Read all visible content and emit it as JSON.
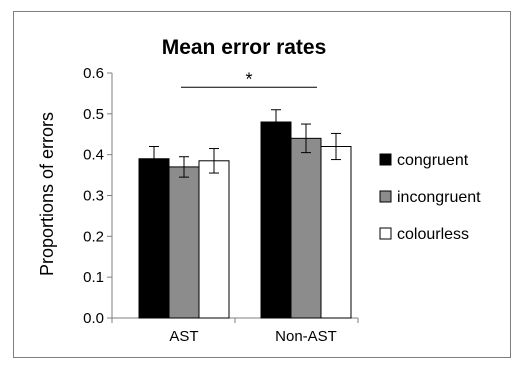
{
  "chart_data": {
    "type": "bar",
    "title": "Mean error rates",
    "xlabel": "",
    "ylabel": "Proportions of errors",
    "ylim": [
      0,
      0.6
    ],
    "yticks": [
      "0.0",
      "0.1",
      "0.2",
      "0.3",
      "0.4",
      "0.5",
      "0.6"
    ],
    "categories": [
      "AST",
      "Non-AST"
    ],
    "series": [
      {
        "name": "congruent",
        "color": "#000000",
        "values": [
          0.39,
          0.48
        ],
        "errors": [
          0.03,
          0.03
        ]
      },
      {
        "name": "incongruent",
        "color": "#8c8c8c",
        "values": [
          0.37,
          0.44
        ],
        "errors": [
          0.025,
          0.035
        ]
      },
      {
        "name": "colourless",
        "color": "#ffffff",
        "values": [
          0.385,
          0.42
        ],
        "errors": [
          0.03,
          0.032
        ]
      }
    ],
    "grid": false,
    "legend": "right",
    "annotation": {
      "text": "*",
      "between": [
        "AST",
        "Non-AST"
      ],
      "y": 0.565
    }
  }
}
